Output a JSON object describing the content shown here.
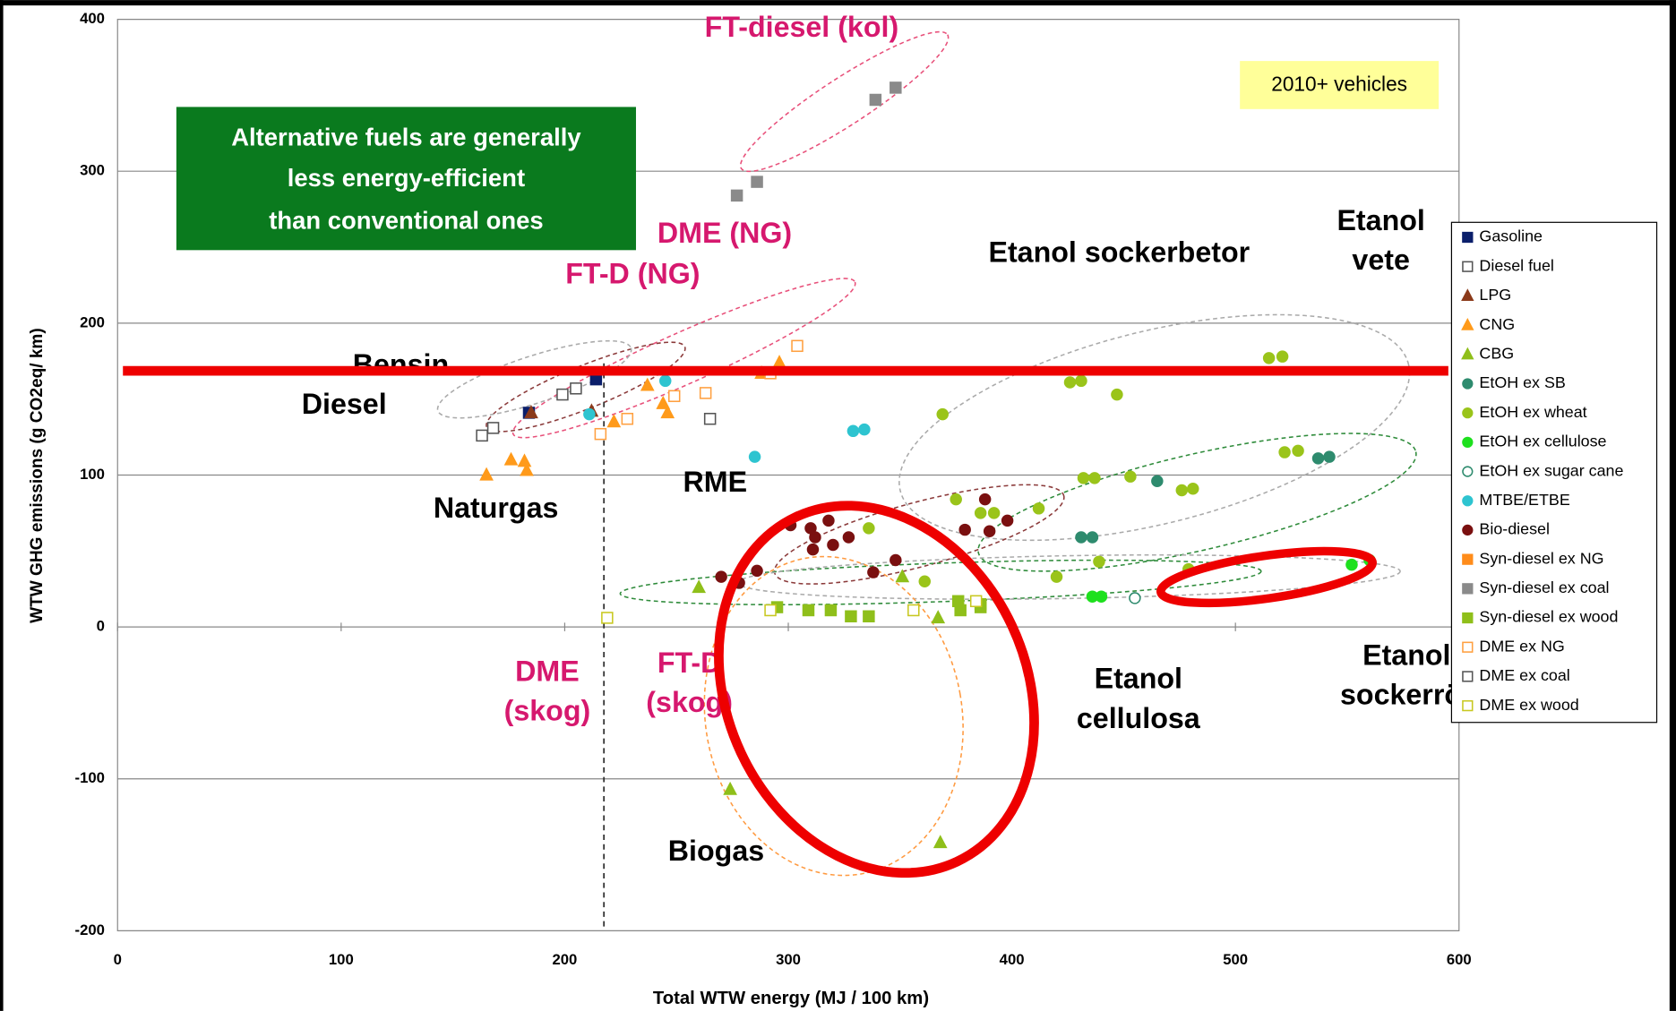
{
  "chart_data": {
    "type": "scatter",
    "xlabel": "Total WTW energy (MJ / 100 km)",
    "ylabel": "WTW GHG emissions (g CO2eq/ km)",
    "xlim": [
      0,
      600
    ],
    "xticks": [
      0,
      100,
      200,
      300,
      400,
      500,
      600
    ],
    "ylim": [
      -200,
      400
    ],
    "yticks": [
      -200,
      -100,
      0,
      100,
      200,
      300,
      400
    ],
    "grid": true,
    "legend": "right",
    "boxes": {
      "green": [
        "Alternative fuels are generally",
        "less energy-efficient",
        "than conventional ones"
      ],
      "yellow": "2010+ vehicles"
    },
    "annotations": [
      {
        "text": [
          "FT-diesel (kol)"
        ],
        "color": "#d6186e"
      },
      {
        "text": [
          "DME (NG)"
        ],
        "color": "#d6186e"
      },
      {
        "text": [
          "FT-D (NG)"
        ],
        "color": "#d6186e"
      },
      {
        "text": [
          "Etanol sockerbetor"
        ],
        "color": "#000000"
      },
      {
        "text": [
          "Etanol",
          "vete"
        ],
        "color": "#000000"
      },
      {
        "text": [
          "Bensin"
        ],
        "color": "#000000"
      },
      {
        "text": [
          "Diesel"
        ],
        "color": "#000000"
      },
      {
        "text": [
          "Naturgas"
        ],
        "color": "#000000"
      },
      {
        "text": [
          "RME"
        ],
        "color": "#000000"
      },
      {
        "text": [
          "DME",
          "(skog)"
        ],
        "color": "#d6186e"
      },
      {
        "text": [
          "FT-D",
          "(skog)"
        ],
        "color": "#d6186e"
      },
      {
        "text": [
          "Etanol",
          "cellulosa"
        ],
        "color": "#000000"
      },
      {
        "text": [
          "Etanol",
          "sockerrör"
        ],
        "color": "#000000"
      },
      {
        "text": [
          "Biogas"
        ],
        "color": "#000000"
      }
    ],
    "series": [
      {
        "name": "Gasoline",
        "color": "#0b1f6b",
        "marker": "square",
        "filled": true,
        "x": [
          184,
          214
        ],
        "values": [
          141,
          163
        ]
      },
      {
        "name": "Diesel fuel",
        "color": "#555555",
        "marker": "square",
        "filled": false,
        "x": [
          163,
          168,
          199,
          205,
          265
        ],
        "values": [
          126,
          131,
          153,
          157,
          137
        ]
      },
      {
        "name": "LPG",
        "color": "#8b3a1a",
        "marker": "triangle",
        "filled": true,
        "x": [
          185,
          212
        ],
        "values": [
          141,
          142
        ]
      },
      {
        "name": "CNG",
        "color": "#ff9a1a",
        "marker": "triangle",
        "filled": true,
        "x": [
          165,
          176,
          182,
          183,
          222,
          237,
          244,
          246,
          288,
          296
        ],
        "values": [
          100,
          110,
          109,
          103,
          135,
          159,
          147,
          141,
          167,
          174
        ]
      },
      {
        "name": "CBG",
        "color": "#8fbf1a",
        "marker": "triangle",
        "filled": true,
        "x": [
          260,
          274,
          368,
          367,
          351
        ],
        "values": [
          26,
          -107,
          -142,
          6,
          33
        ]
      },
      {
        "name": "EtOH ex SB",
        "color": "#2e8b6e",
        "marker": "circle",
        "filled": true,
        "x": [
          431,
          436,
          465,
          537,
          542
        ],
        "values": [
          59,
          59,
          96,
          111,
          112
        ]
      },
      {
        "name": "EtOH ex wheat",
        "color": "#9ac41a",
        "marker": "circle",
        "filled": true,
        "x": [
          426,
          431,
          447,
          369,
          515,
          521,
          432,
          437,
          453,
          476,
          481,
          522,
          528,
          375,
          386,
          392,
          412,
          420,
          439,
          479,
          361,
          336
        ],
        "values": [
          161,
          162,
          153,
          140,
          177,
          178,
          98,
          98,
          99,
          90,
          91,
          115,
          116,
          84,
          75,
          75,
          78,
          33,
          43,
          38,
          30,
          65
        ]
      },
      {
        "name": "EtOH ex cellulose",
        "color": "#1ee01e",
        "marker": "circle",
        "filled": true,
        "x": [
          436,
          440,
          552,
          560
        ],
        "values": [
          20,
          20,
          41,
          44
        ]
      },
      {
        "name": "EtOH ex sugar cane",
        "color": "#2e8b6e",
        "marker": "circle",
        "filled": false,
        "x": [
          455
        ],
        "values": [
          19
        ]
      },
      {
        "name": "MTBE/ETBE",
        "color": "#2ec4d0",
        "marker": "circle",
        "filled": true,
        "x": [
          211,
          245,
          285,
          329,
          334
        ],
        "values": [
          140,
          162,
          112,
          129,
          130
        ]
      },
      {
        "name": "Bio-diesel",
        "color": "#7a1010",
        "marker": "circle",
        "filled": true,
        "x": [
          301,
          310,
          318,
          312,
          320,
          327,
          311,
          348,
          338,
          379,
          388,
          390,
          398,
          278,
          286,
          270
        ],
        "values": [
          67,
          65,
          70,
          59,
          54,
          59,
          51,
          44,
          36,
          64,
          84,
          63,
          70,
          29,
          37,
          33
        ]
      },
      {
        "name": "Syn-diesel ex NG",
        "color": "#ff8c1a",
        "marker": "square",
        "filled": true,
        "x": [],
        "values": []
      },
      {
        "name": "Syn-diesel ex coal",
        "color": "#8a8a8a",
        "marker": "square",
        "filled": true,
        "x": [
          277,
          286,
          339,
          348
        ],
        "values": [
          284,
          293,
          347,
          355
        ]
      },
      {
        "name": "Syn-diesel ex wood",
        "color": "#8fbf1a",
        "marker": "square",
        "filled": true,
        "x": [
          295,
          309,
          319,
          328,
          336,
          377,
          386,
          376,
          386
        ],
        "values": [
          13,
          11,
          11,
          7,
          7,
          11,
          13,
          17,
          15
        ]
      },
      {
        "name": "DME ex NG",
        "color": "#ffa040",
        "marker": "square",
        "filled": false,
        "x": [
          304,
          263,
          249,
          228,
          216,
          292
        ],
        "values": [
          185,
          154,
          152,
          137,
          127,
          167
        ]
      },
      {
        "name": "DME ex coal",
        "color": "#555555",
        "marker": "square",
        "filled": false,
        "x": [],
        "values": []
      },
      {
        "name": "DME ex wood",
        "color": "#c8c820",
        "marker": "square",
        "filled": false,
        "x": [
          219,
          292,
          356,
          384
        ],
        "values": [
          6,
          11,
          11,
          17
        ]
      }
    ]
  }
}
